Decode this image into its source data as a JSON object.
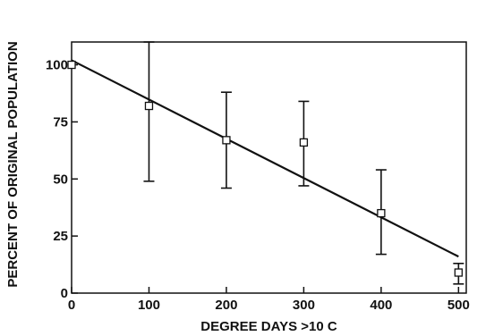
{
  "chart_data": {
    "type": "scatter",
    "xlabel": "DEGREE DAYS >10 C",
    "ylabel": "PERCENT OF ORIGINAL POPULATION",
    "xlim": [
      0,
      510
    ],
    "ylim": [
      0,
      110
    ],
    "x_ticks": [
      "0",
      "100",
      "200",
      "300",
      "400",
      "500"
    ],
    "y_ticks": [
      "0",
      "25",
      "50",
      "75",
      "100"
    ],
    "grid": false,
    "legend": "none",
    "points": [
      {
        "x": 0,
        "y": 100,
        "err_low": 100,
        "err_high": 100
      },
      {
        "x": 100,
        "y": 82,
        "err_low": 49,
        "err_high": 110
      },
      {
        "x": 200,
        "y": 67,
        "err_low": 46,
        "err_high": 88
      },
      {
        "x": 300,
        "y": 66,
        "err_low": 47,
        "err_high": 84
      },
      {
        "x": 400,
        "y": 35,
        "err_low": 17,
        "err_high": 54
      },
      {
        "x": 500,
        "y": 9,
        "err_low": 4,
        "err_high": 13
      }
    ],
    "fit_line": {
      "x": [
        0,
        500
      ],
      "y": [
        102,
        16
      ]
    },
    "colors": {
      "ink": "#111111"
    }
  }
}
